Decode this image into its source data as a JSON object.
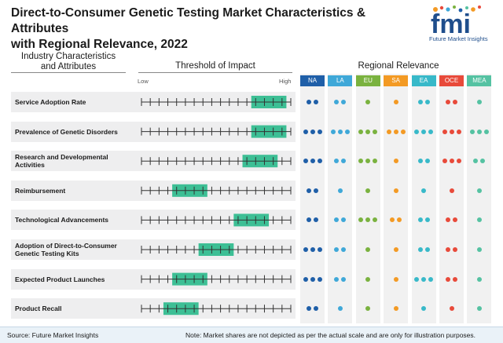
{
  "header": {
    "title_line1": "Direct-to-Consumer Genetic Testing Market Characteristics & Attributes",
    "title_line2": "with Regional Relevance, 2022",
    "logo_text": "fmi",
    "logo_tagline": "Future Market Insights"
  },
  "columns": {
    "characteristics_line1": "Industry Characteristics",
    "characteristics_line2": "and Attributes",
    "threshold": "Threshold of Impact",
    "regional": "Regional Relevance",
    "low": "Low",
    "high": "High"
  },
  "regions": [
    {
      "label": "NA",
      "color": "#1f5fa8"
    },
    {
      "label": "LA",
      "color": "#3fa8d8"
    },
    {
      "label": "EU",
      "color": "#7ab23f"
    },
    {
      "label": "SA",
      "color": "#f39a24"
    },
    {
      "label": "EA",
      "color": "#38b9c9"
    },
    {
      "label": "OCE",
      "color": "#e84a3a"
    },
    {
      "label": "MEA",
      "color": "#55c2a2"
    }
  ],
  "impact_color": "#3dbf95",
  "scale_ticks": 18,
  "rows": [
    {
      "line1": "Service Adoption Rate",
      "line2": "",
      "impact_start": 13,
      "impact_end": 16,
      "dots": [
        2,
        2,
        1,
        1,
        2,
        2,
        1
      ]
    },
    {
      "line1": "Prevalence of Genetic Disorders",
      "line2": "",
      "impact_start": 13,
      "impact_end": 16,
      "dots": [
        3,
        3,
        3,
        3,
        3,
        3,
        3
      ]
    },
    {
      "line1": "Research and Developmental",
      "line2": "Activities",
      "impact_start": 12,
      "impact_end": 15,
      "dots": [
        3,
        2,
        3,
        1,
        2,
        3,
        2
      ]
    },
    {
      "line1": "Reimbursement",
      "line2": "",
      "impact_start": 4,
      "impact_end": 7,
      "dots": [
        2,
        1,
        1,
        1,
        1,
        1,
        1
      ]
    },
    {
      "line1": "Technological Advancements",
      "line2": "",
      "impact_start": 11,
      "impact_end": 14,
      "dots": [
        2,
        2,
        3,
        2,
        2,
        2,
        1
      ]
    },
    {
      "line1": "Adoption of Direct-to-Consumer",
      "line2": "Genetic Testing Kits",
      "impact_start": 7,
      "impact_end": 10,
      "dots": [
        3,
        2,
        1,
        1,
        2,
        2,
        1
      ]
    },
    {
      "line1": "Expected Product Launches",
      "line2": "",
      "impact_start": 4,
      "impact_end": 7,
      "dots": [
        3,
        2,
        1,
        1,
        3,
        2,
        1
      ]
    },
    {
      "line1": "Product Recall",
      "line2": "",
      "impact_start": 3,
      "impact_end": 6,
      "dots": [
        2,
        1,
        1,
        1,
        1,
        1,
        1
      ]
    }
  ],
  "footer": {
    "source": "Source: Future Market Insights",
    "note": "Note: Market shares are not depicted as per the actual scale and are only for illustration purposes."
  }
}
